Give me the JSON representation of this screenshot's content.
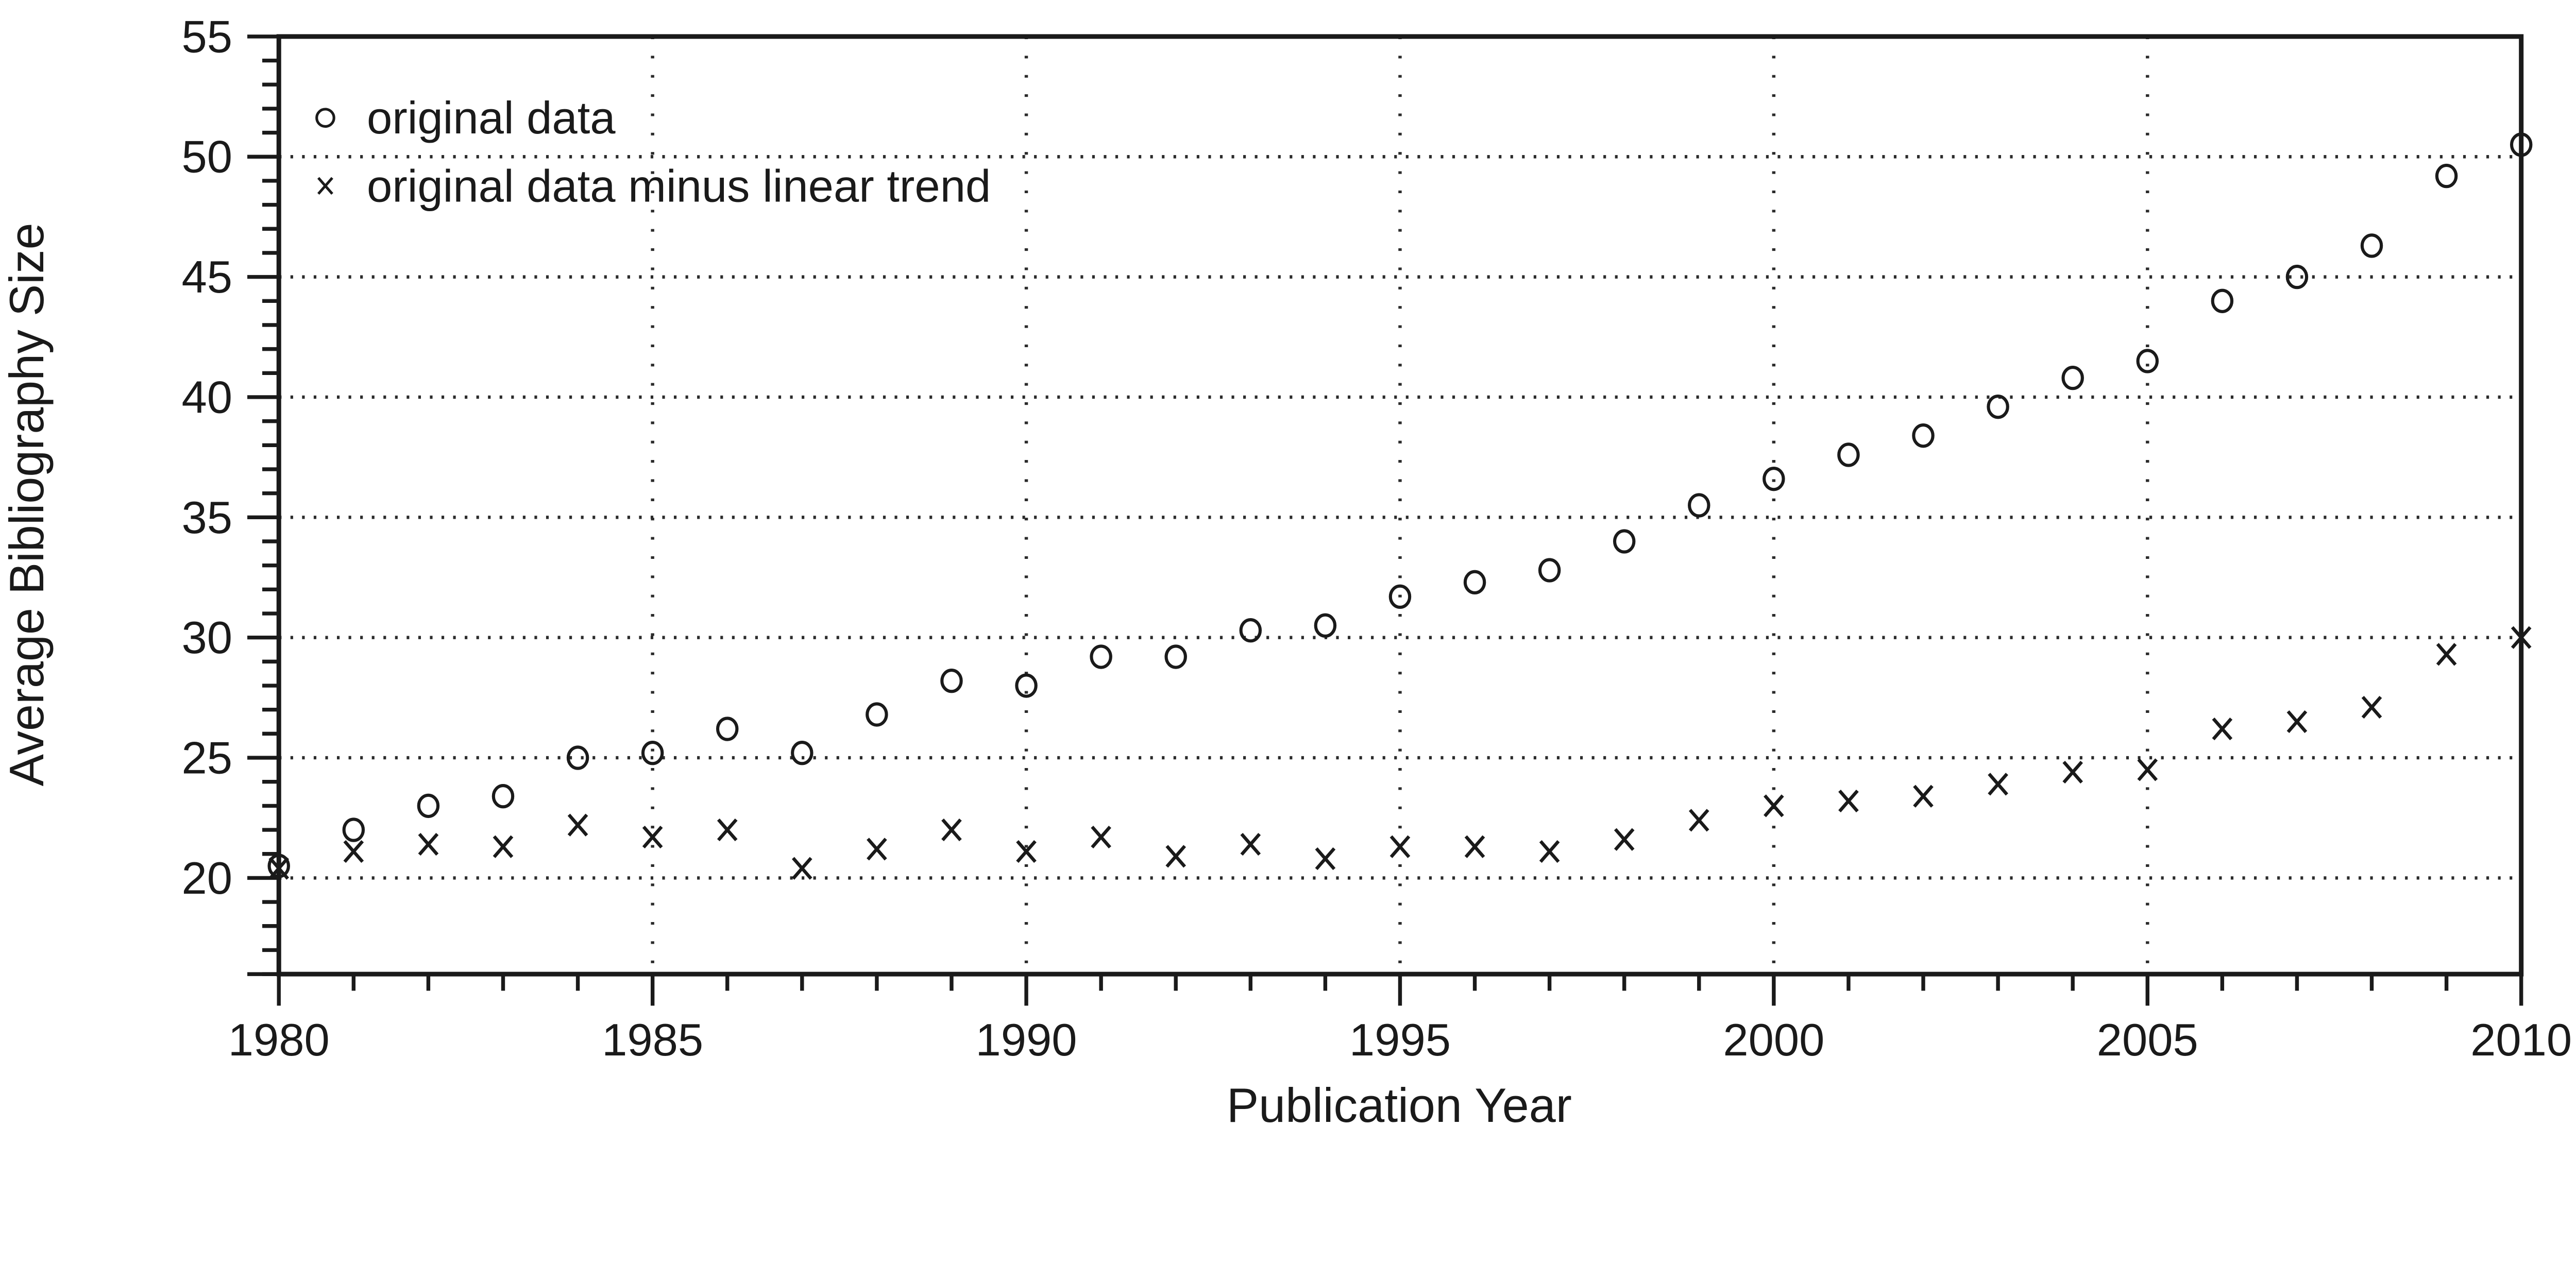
{
  "colors": {
    "foreground": "#1a1a1a",
    "background": "#ffffff",
    "grid": "#2b2b2b"
  },
  "chart_data": {
    "type": "scatter",
    "title": "",
    "xlabel": "Publication Year",
    "ylabel": "Average Bibliography Size",
    "xlim": [
      1980,
      2010
    ],
    "ylim": [
      16,
      55
    ],
    "x_ticks_major": [
      1980,
      1985,
      1990,
      1995,
      2000,
      2005,
      2010
    ],
    "y_ticks_major": [
      20,
      25,
      30,
      35,
      40,
      45,
      50,
      55
    ],
    "x_minor_step": 1,
    "y_minor_step": 1,
    "grid": "dotted lines at major ticks, full box frame",
    "legend_position": "top-left inside plot",
    "x": [
      1980,
      1981,
      1982,
      1983,
      1984,
      1985,
      1986,
      1987,
      1988,
      1989,
      1990,
      1991,
      1992,
      1993,
      1994,
      1995,
      1996,
      1997,
      1998,
      1999,
      2000,
      2001,
      2002,
      2003,
      2004,
      2005,
      2006,
      2007,
      2008,
      2009,
      2010
    ],
    "series": [
      {
        "name": "original data",
        "marker": "circle",
        "values": [
          20.5,
          22.0,
          23.0,
          23.4,
          25.0,
          25.2,
          26.2,
          25.2,
          26.8,
          28.2,
          28.0,
          29.2,
          29.2,
          30.3,
          30.5,
          31.7,
          32.3,
          32.8,
          34.0,
          35.5,
          36.6,
          37.6,
          38.4,
          39.6,
          40.8,
          41.5,
          44.0,
          45.0,
          46.3,
          49.2,
          50.5
        ]
      },
      {
        "name": "original data minus linear trend",
        "marker": "x",
        "values": [
          20.4,
          21.1,
          21.4,
          21.3,
          22.2,
          21.7,
          22.0,
          20.4,
          21.2,
          22.0,
          21.1,
          21.7,
          20.9,
          21.4,
          20.8,
          21.3,
          21.3,
          21.1,
          21.6,
          22.4,
          23.0,
          23.2,
          23.4,
          23.9,
          24.4,
          24.5,
          26.2,
          26.5,
          27.1,
          29.3,
          30.0
        ]
      }
    ]
  }
}
